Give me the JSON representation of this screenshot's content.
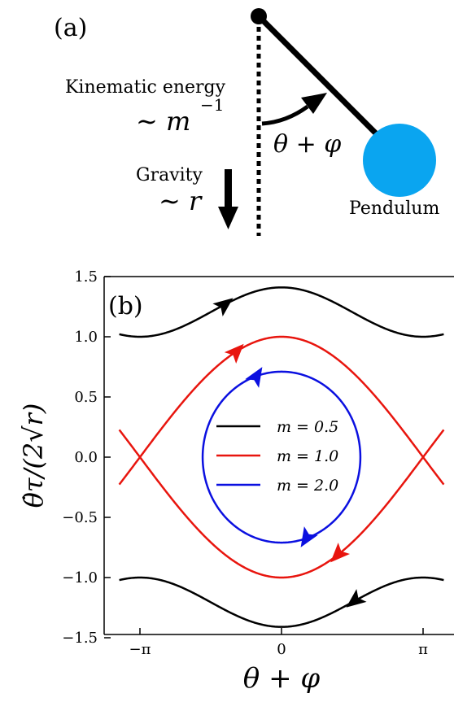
{
  "panel_a": {
    "label": "(a)",
    "kinematic_label": "Kinematic energy",
    "kinematic_scaling": "∼ m",
    "kinematic_exponent": "−1",
    "gravity_label": "Gravity",
    "gravity_scaling": "∼ r",
    "angle_label": "θ + φ",
    "pendulum_label": "Pendulum",
    "colors": {
      "bob": "#0aa5f0",
      "rod": "#000000"
    }
  },
  "chart_data": {
    "type": "line",
    "panel_label": "(b)",
    "xlabel": "θ + φ",
    "ylabel": "θ̇τ/(2√r)",
    "xlim": [
      -3.6,
      3.6
    ],
    "ylim": [
      -1.5,
      1.5
    ],
    "x_ticks": [
      "−π",
      "0",
      "π"
    ],
    "y_ticks": [
      "1.5",
      "1.0",
      "0.5",
      "0.0",
      "−0.5",
      "−1.0",
      "−1.5"
    ],
    "grid": false,
    "legend_position": "center",
    "series": [
      {
        "name": "m = 0.5",
        "m": 0.5,
        "color": "#000000",
        "kind": "rotating orbit",
        "max": 1.41,
        "min": 1.0
      },
      {
        "name": "m = 1.0",
        "m": 1.0,
        "color": "#e8150e",
        "kind": "separatrix",
        "peak": 1.0
      },
      {
        "name": "m = 2.0",
        "m": 2.0,
        "color": "#0b10e0",
        "kind": "closed orbit",
        "amplitude": 0.71,
        "x_extent": 1.75
      }
    ]
  }
}
